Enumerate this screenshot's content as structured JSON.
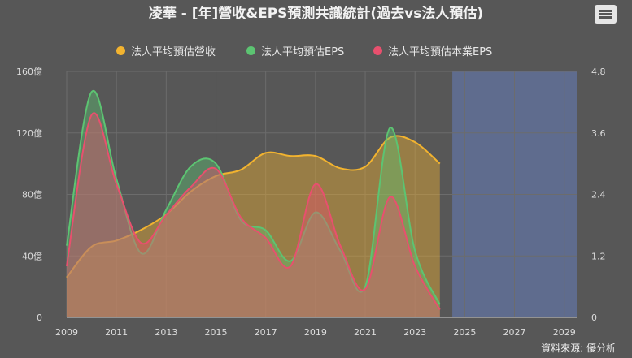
{
  "title": "凌華 - [年]營收&EPS預測共識統計(過去vs法人預估)",
  "menu": {
    "icon": "hamburger-menu-icon"
  },
  "source": "資料來源: 優分析",
  "colors": {
    "revenue": "#f2b32f",
    "eps": "#5cc472",
    "core_eps": "#e8506e",
    "forecast_band": "#5f6c8e",
    "grid": "#6c6c6c"
  },
  "chart_data": {
    "type": "area",
    "legend_position": "top",
    "x_ticks": [
      "2009",
      "2011",
      "2013",
      "2015",
      "2017",
      "2019",
      "2021",
      "2023",
      "2025",
      "2027",
      "2029"
    ],
    "xlim": [
      2009,
      2029.5
    ],
    "forecast_range": [
      2024.5,
      2029.5
    ],
    "y_left": {
      "ticks": [
        "0",
        "40億",
        "80億",
        "120億",
        "160億"
      ],
      "range": [
        0,
        160
      ]
    },
    "y_right": {
      "ticks": [
        "0",
        "1.2",
        "2.4",
        "3.6",
        "4.8"
      ],
      "range": [
        0,
        4.8
      ]
    },
    "series": [
      {
        "name": "法人平均預估營收",
        "axis": "left",
        "x": [
          2009,
          2010,
          2011,
          2012,
          2013,
          2014,
          2015,
          2016,
          2017,
          2018,
          2019,
          2020,
          2021,
          2022,
          2023,
          2024
        ],
        "values": [
          26,
          46,
          50,
          57,
          67,
          82,
          92,
          96,
          107,
          105,
          105,
          97,
          98,
          117,
          114,
          100
        ]
      },
      {
        "name": "法人平均預估EPS",
        "axis": "right",
        "x": [
          2009,
          2010,
          2011,
          2012,
          2013,
          2014,
          2015,
          2016,
          2017,
          2018,
          2019,
          2020,
          2021,
          2022,
          2023,
          2024
        ],
        "values": [
          1.4,
          4.4,
          2.7,
          1.25,
          2.1,
          2.95,
          3.0,
          1.9,
          1.7,
          1.1,
          2.05,
          1.3,
          0.6,
          3.7,
          1.3,
          0.25
        ]
      },
      {
        "name": "法人平均預估本業EPS",
        "axis": "right",
        "x": [
          2009,
          2010,
          2011,
          2012,
          2013,
          2014,
          2015,
          2016,
          2017,
          2018,
          2019,
          2020,
          2021,
          2022,
          2023,
          2024
        ],
        "values": [
          1.0,
          3.95,
          2.6,
          1.45,
          2.0,
          2.55,
          2.9,
          1.95,
          1.55,
          1.0,
          2.6,
          1.4,
          0.55,
          2.35,
          1.0,
          0.15
        ]
      }
    ]
  }
}
